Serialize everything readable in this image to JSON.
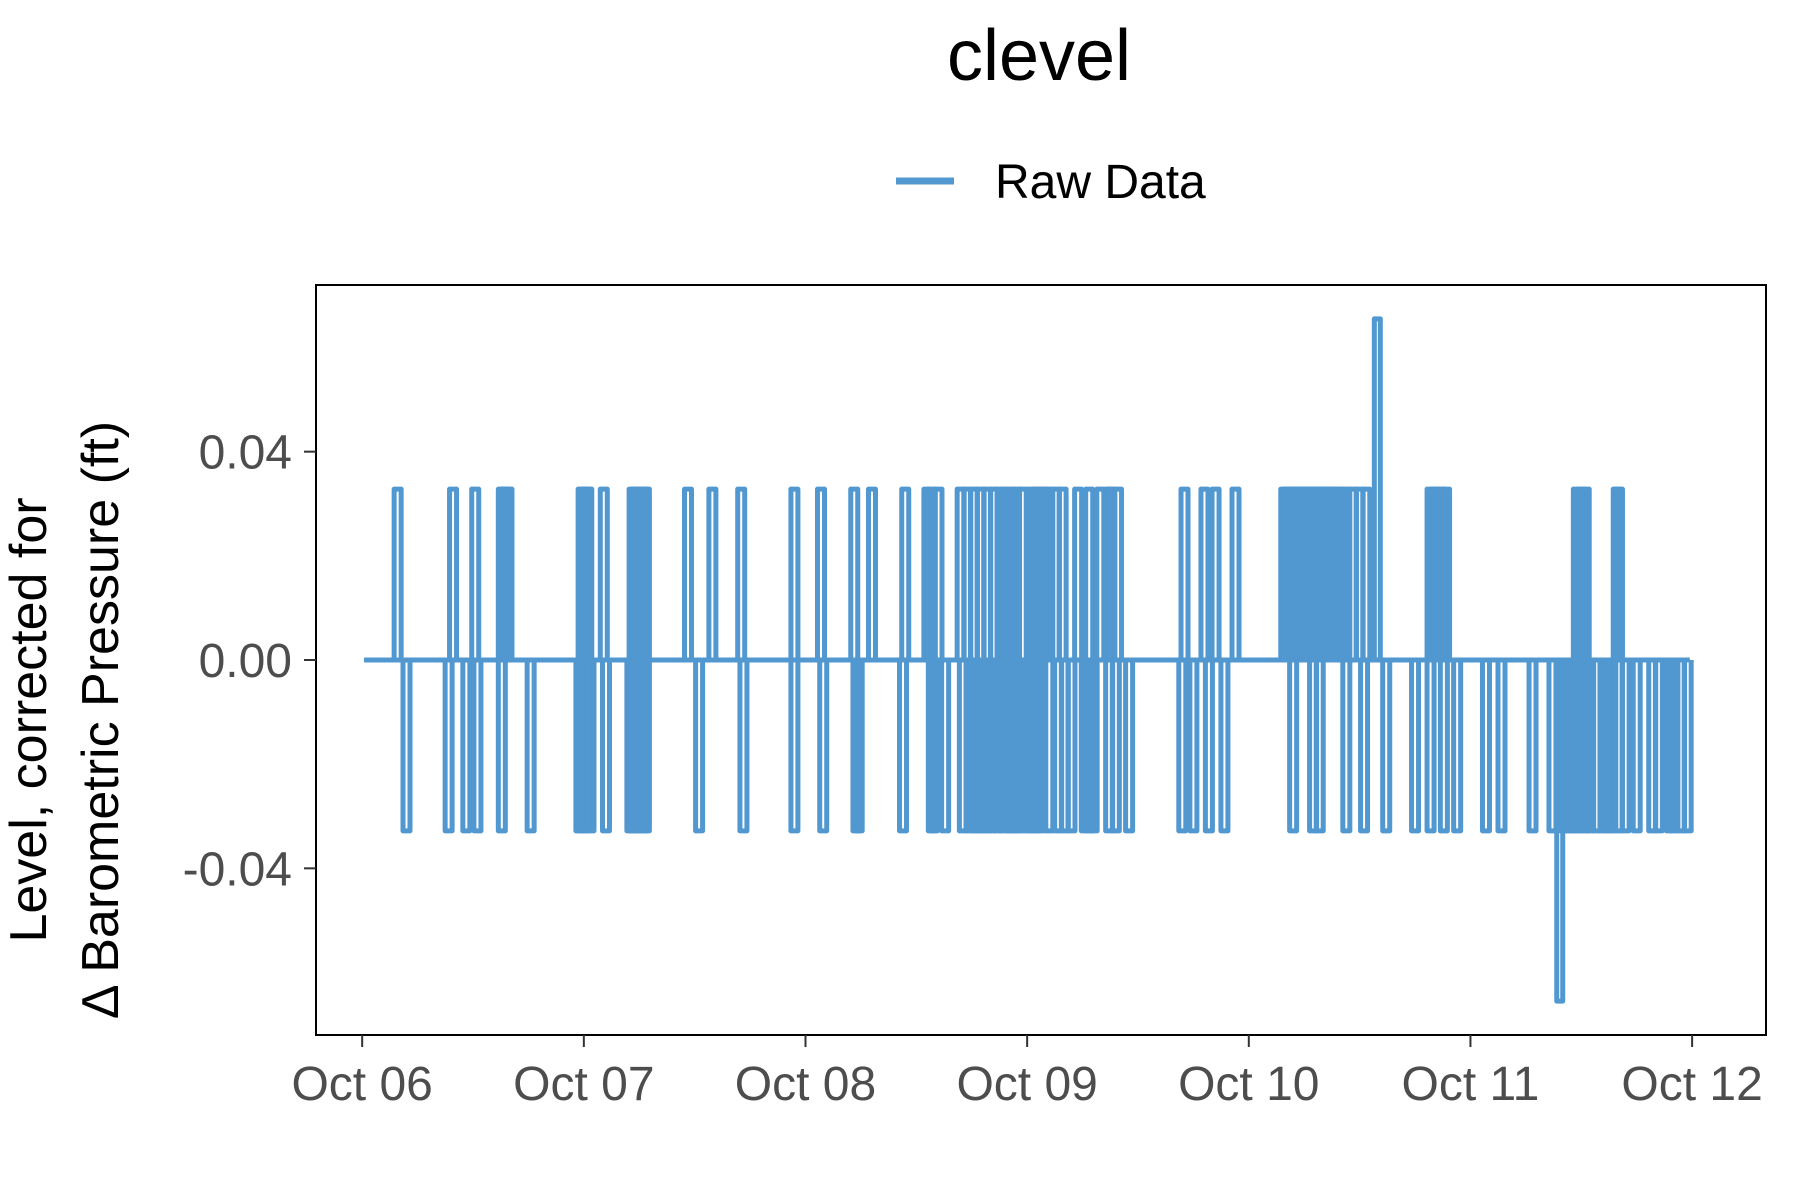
{
  "chart_data": {
    "type": "line",
    "title": "clevel",
    "ylabel_line1": "Level, corrected for",
    "ylabel_line2": "Δ Barometric Pressure (ft)",
    "xlabel": "",
    "legend": {
      "placement": "top",
      "entries": [
        {
          "name": "Raw Data",
          "color": "#5197d0"
        }
      ]
    },
    "x_ticks": [
      "Oct 06",
      "Oct 07",
      "Oct 08",
      "Oct 09",
      "Oct 10",
      "Oct 11",
      "Oct 12"
    ],
    "y_ticks": [
      "-0.04",
      "0.00",
      "0.04"
    ],
    "y_tick_values": [
      -0.04,
      0.0,
      0.04
    ],
    "xlim": [
      "2023-10-05T19:00",
      "2023-10-12T08:00"
    ],
    "ylim": [
      -0.072,
      0.072
    ],
    "grid": false,
    "series": [
      {
        "name": "Raw Data",
        "color": "#5197d0",
        "baseline": 0.0,
        "spike_up": 0.0328,
        "spike_down": -0.0328,
        "x_start": "2023-10-06T00:12",
        "x_end": "2023-10-11T23:45",
        "up_excursions_days": [
          0.16,
          0.41,
          0.51,
          0.63,
          0.64,
          0.65,
          0.66,
          0.99,
          1.0,
          1.01,
          1.02,
          1.09,
          1.22,
          1.23,
          1.24,
          1.26,
          1.27,
          1.28,
          1.47,
          1.58,
          1.71,
          1.95,
          2.07,
          2.22,
          2.3,
          2.45,
          2.55,
          2.57,
          2.6,
          2.7,
          2.73,
          2.76,
          2.79,
          2.82,
          2.85,
          2.88,
          2.9,
          2.93,
          2.95,
          2.98,
          3.02,
          3.04,
          3.06,
          3.08,
          3.1,
          3.13,
          3.16,
          3.23,
          3.28,
          3.33,
          3.37,
          3.38,
          3.41,
          3.71,
          3.8,
          3.85,
          3.94,
          4.16,
          4.17,
          4.18,
          4.19,
          4.2,
          4.21,
          4.22,
          4.23,
          4.24,
          4.25,
          4.26,
          4.28,
          4.29,
          4.3,
          4.31,
          4.32,
          4.33,
          4.34,
          4.35,
          4.37,
          4.38,
          4.4,
          4.42,
          4.44,
          4.47,
          4.5,
          4.53,
          4.82,
          4.84,
          4.85,
          4.87,
          4.89,
          5.48,
          5.5,
          5.52,
          5.66,
          5.67
        ],
        "down_excursions_days": [
          0.2,
          0.39,
          0.47,
          0.52,
          0.63,
          0.76,
          0.98,
          0.99,
          1.01,
          1.03,
          1.1,
          1.21,
          1.22,
          1.24,
          1.25,
          1.27,
          1.28,
          1.52,
          1.72,
          1.95,
          2.08,
          2.23,
          2.24,
          2.44,
          2.57,
          2.58,
          2.63,
          2.71,
          2.74,
          2.76,
          2.78,
          2.8,
          2.82,
          2.84,
          2.87,
          2.89,
          2.92,
          2.93,
          2.95,
          2.97,
          3.0,
          3.02,
          3.04,
          3.06,
          3.1,
          3.14,
          3.17,
          3.2,
          3.26,
          3.28,
          3.3,
          3.37,
          3.4,
          3.46,
          3.7,
          3.75,
          3.82,
          3.89,
          4.2,
          4.29,
          4.32,
          4.44,
          4.52,
          4.62,
          4.75,
          4.82,
          4.88,
          4.94,
          5.07,
          5.14,
          5.28,
          5.37,
          5.42,
          5.44,
          5.46,
          5.48,
          5.5,
          5.52,
          5.54,
          5.57,
          5.6,
          5.62,
          5.64,
          5.67,
          5.7,
          5.75,
          5.82,
          5.85,
          5.9,
          5.92,
          5.95,
          5.98
        ],
        "extremes": [
          {
            "x": "2023-10-10T13:55",
            "y": 0.0655
          },
          {
            "x": "2023-10-11T09:40",
            "y": -0.0655
          }
        ]
      }
    ]
  }
}
